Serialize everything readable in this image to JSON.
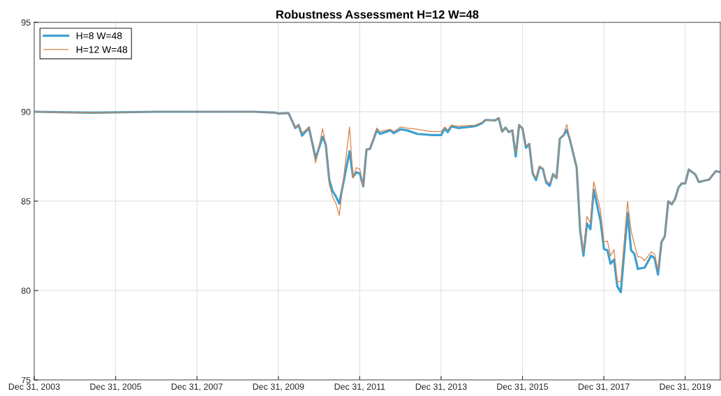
{
  "chart_data": {
    "type": "line",
    "title": "Robustness Assessment H=12 W=48",
    "x": [
      "2003-12-31",
      "2005-06",
      "2007-01",
      "2009-06",
      "2009-12",
      "2010-01",
      "2010-04",
      "2010-06",
      "2010-07",
      "2010-08",
      "2010-10",
      "2010-12",
      "2011-02",
      "2011-03",
      "2011-04",
      "2011-05",
      "2011-06",
      "2011-07",
      "2011-10",
      "2011-11",
      "2011-12",
      "2012-01",
      "2012-02",
      "2012-03",
      "2012-04",
      "2012-06",
      "2012-07",
      "2012-10",
      "2012-11",
      "2013-01",
      "2013-03",
      "2013-06",
      "2013-10",
      "2014-01",
      "2014-02",
      "2014-03",
      "2014-04",
      "2014-06",
      "2014-11",
      "2015-01",
      "2015-02",
      "2015-05",
      "2015-06",
      "2015-07",
      "2015-08",
      "2015-09",
      "2015-10",
      "2015-11",
      "2015-12",
      "2016-01",
      "2016-02",
      "2016-03",
      "2016-04",
      "2016-05",
      "2016-06",
      "2016-07",
      "2016-08",
      "2016-09",
      "2016-10",
      "2016-11",
      "2016-12",
      "2017-01",
      "2017-02",
      "2017-03",
      "2017-05",
      "2017-06",
      "2017-07",
      "2017-08",
      "2017-09",
      "2017-10",
      "2017-12",
      "2018-01",
      "2018-02",
      "2018-03",
      "2018-04",
      "2018-05",
      "2018-06",
      "2018-08",
      "2018-09",
      "2018-10",
      "2018-11",
      "2018-12",
      "2019-01",
      "2019-03",
      "2019-04",
      "2019-05",
      "2019-06",
      "2019-07",
      "2019-08",
      "2019-09",
      "2019-10",
      "2019-11",
      "2019-12",
      "2020-01",
      "2020-02",
      "2020-04",
      "2020-05",
      "2020-07",
      "2020-08",
      "2020-10",
      "2020-11"
    ],
    "series": [
      {
        "name": "H=8 W=48",
        "color": "#3d9fd0",
        "values": [
          90.0,
          89.95,
          90.0,
          90.0,
          89.95,
          89.9,
          89.93,
          89.09,
          89.26,
          88.66,
          89.11,
          87.39,
          88.6,
          88.18,
          86.22,
          85.57,
          85.25,
          84.86,
          87.79,
          86.35,
          86.61,
          86.55,
          85.83,
          87.89,
          87.92,
          88.96,
          88.76,
          88.96,
          88.8,
          89.02,
          88.96,
          88.76,
          88.7,
          88.7,
          89.06,
          88.86,
          89.18,
          89.09,
          89.19,
          89.35,
          89.54,
          89.52,
          89.64,
          88.89,
          89.11,
          88.86,
          88.96,
          87.5,
          89.25,
          89.06,
          87.98,
          88.2,
          86.55,
          86.18,
          86.9,
          86.81,
          86.03,
          85.86,
          86.51,
          86.29,
          88.5,
          88.67,
          88.98,
          88.44,
          86.87,
          83.36,
          81.95,
          83.75,
          83.43,
          85.64,
          83.88,
          82.32,
          82.25,
          81.5,
          81.73,
          80.23,
          79.91,
          84.34,
          82.25,
          82.06,
          81.21,
          81.25,
          81.28,
          81.95,
          81.8,
          80.89,
          82.71,
          83.04,
          84.99,
          84.82,
          85.12,
          85.77,
          85.99,
          85.99,
          86.77,
          86.48,
          86.07,
          86.16,
          86.2,
          86.68,
          86.64
        ]
      },
      {
        "name": "H=12 W=48",
        "color": "#d9824a",
        "values": [
          90.0,
          89.95,
          90.0,
          90.0,
          89.95,
          89.9,
          89.93,
          89.09,
          89.26,
          88.83,
          89.11,
          87.14,
          89.05,
          88.18,
          85.96,
          85.25,
          84.86,
          84.2,
          89.15,
          86.29,
          86.87,
          86.8,
          85.83,
          87.89,
          87.92,
          89.09,
          88.89,
          89.02,
          88.89,
          89.15,
          89.09,
          89.02,
          88.89,
          88.89,
          89.15,
          88.98,
          89.25,
          89.19,
          89.25,
          89.41,
          89.54,
          89.52,
          89.64,
          88.89,
          89.11,
          88.86,
          88.96,
          87.72,
          89.25,
          89.06,
          88.11,
          88.2,
          86.64,
          86.29,
          86.98,
          86.81,
          86.12,
          85.99,
          86.51,
          86.29,
          88.5,
          88.67,
          89.29,
          88.44,
          86.87,
          83.36,
          82.19,
          84.14,
          83.78,
          86.09,
          84.47,
          82.71,
          82.77,
          81.95,
          82.29,
          80.5,
          80.5,
          84.99,
          83.36,
          82.58,
          81.9,
          81.86,
          81.67,
          82.16,
          82.03,
          81.14,
          82.73,
          83.04,
          84.99,
          84.82,
          85.12,
          85.77,
          85.99,
          85.99,
          86.77,
          86.48,
          86.07,
          86.16,
          86.2,
          86.68,
          86.64
        ]
      }
    ],
    "xlim": [
      "2003-12-31",
      "2020-11-10"
    ],
    "xticks": [
      {
        "value": "2003-12-31",
        "label": "Dec 31, 2003"
      },
      {
        "value": "2005-12-31",
        "label": "Dec 31, 2005"
      },
      {
        "value": "2007-12-31",
        "label": "Dec 31, 2007"
      },
      {
        "value": "2009-12-31",
        "label": "Dec 31, 2009"
      },
      {
        "value": "2011-12-31",
        "label": "Dec 31, 2011"
      },
      {
        "value": "2013-12-31",
        "label": "Dec 31, 2013"
      },
      {
        "value": "2015-12-31",
        "label": "Dec 31, 2015"
      },
      {
        "value": "2017-12-31",
        "label": "Dec 31, 2017"
      },
      {
        "value": "2019-12-31",
        "label": "Dec 31, 2019"
      }
    ],
    "ylim": [
      75,
      95
    ],
    "yticks": [
      75,
      80,
      85,
      90,
      95
    ],
    "grid": true,
    "legend": "top left"
  }
}
